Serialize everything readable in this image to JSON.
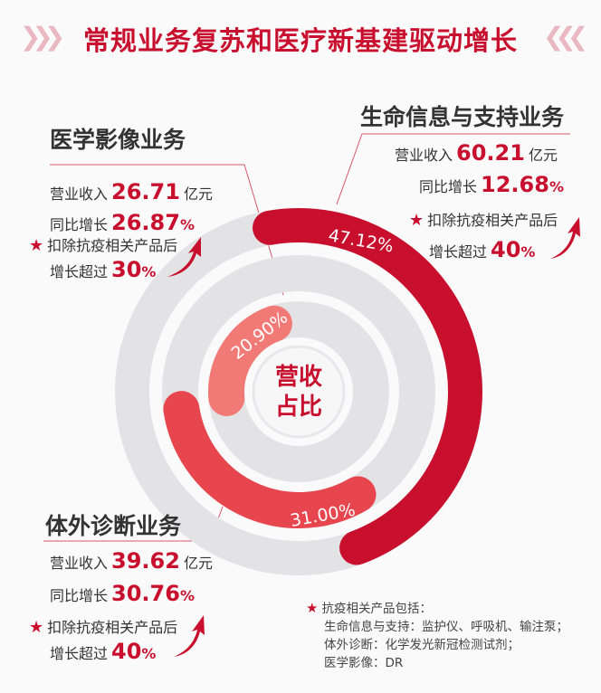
{
  "title": "常规业务复苏和医疗新基建驱动增长",
  "center_label": [
    "营收",
    "占比"
  ],
  "segments": [
    {
      "name": "生命信息与支持业务",
      "revenue_label": "营业收入",
      "revenue": "60.21",
      "revenue_unit": "亿元",
      "yoy_label": "同比增长",
      "yoy": "12.68",
      "pct_sign": "%",
      "note": "扣除抗疫相关产品后",
      "growth_label": "增长超过",
      "growth": "40",
      "share_label": "47.12%"
    },
    {
      "name": "体外诊断业务",
      "revenue_label": "营业收入",
      "revenue": "39.62",
      "revenue_unit": "亿元",
      "yoy_label": "同比增长",
      "yoy": "30.76",
      "pct_sign": "%",
      "note": "扣除抗疫相关产品后",
      "growth_label": "增长超过",
      "growth": "40",
      "share_label": "31.00%"
    },
    {
      "name": "医学影像业务",
      "revenue_label": "营业收入",
      "revenue": "26.71",
      "revenue_unit": "亿元",
      "yoy_label": "同比增长",
      "yoy": "26.87",
      "pct_sign": "%",
      "note": "扣除抗疫相关产品后",
      "growth_label": "增长超过",
      "growth": "30",
      "share_label": "20.90%"
    }
  ],
  "notes": {
    "heading": "抗疫相关产品包括：",
    "lines": [
      "生命信息与支持：监护仪、呼吸机、输注泵；",
      "体外诊断：化学发光新冠检测试剂；",
      "医学影像：DR"
    ]
  },
  "colors": {
    "accent": "#c8102e",
    "mid": "#e8464f",
    "light": "#f27a76",
    "track": "#e3e3e5"
  },
  "chart_data": {
    "type": "radial-bar",
    "title": "营收占比",
    "categories": [
      "生命信息与支持业务",
      "体外诊断业务",
      "医学影像业务"
    ],
    "values": [
      47.12,
      31.0,
      20.9
    ],
    "unit": "%"
  }
}
